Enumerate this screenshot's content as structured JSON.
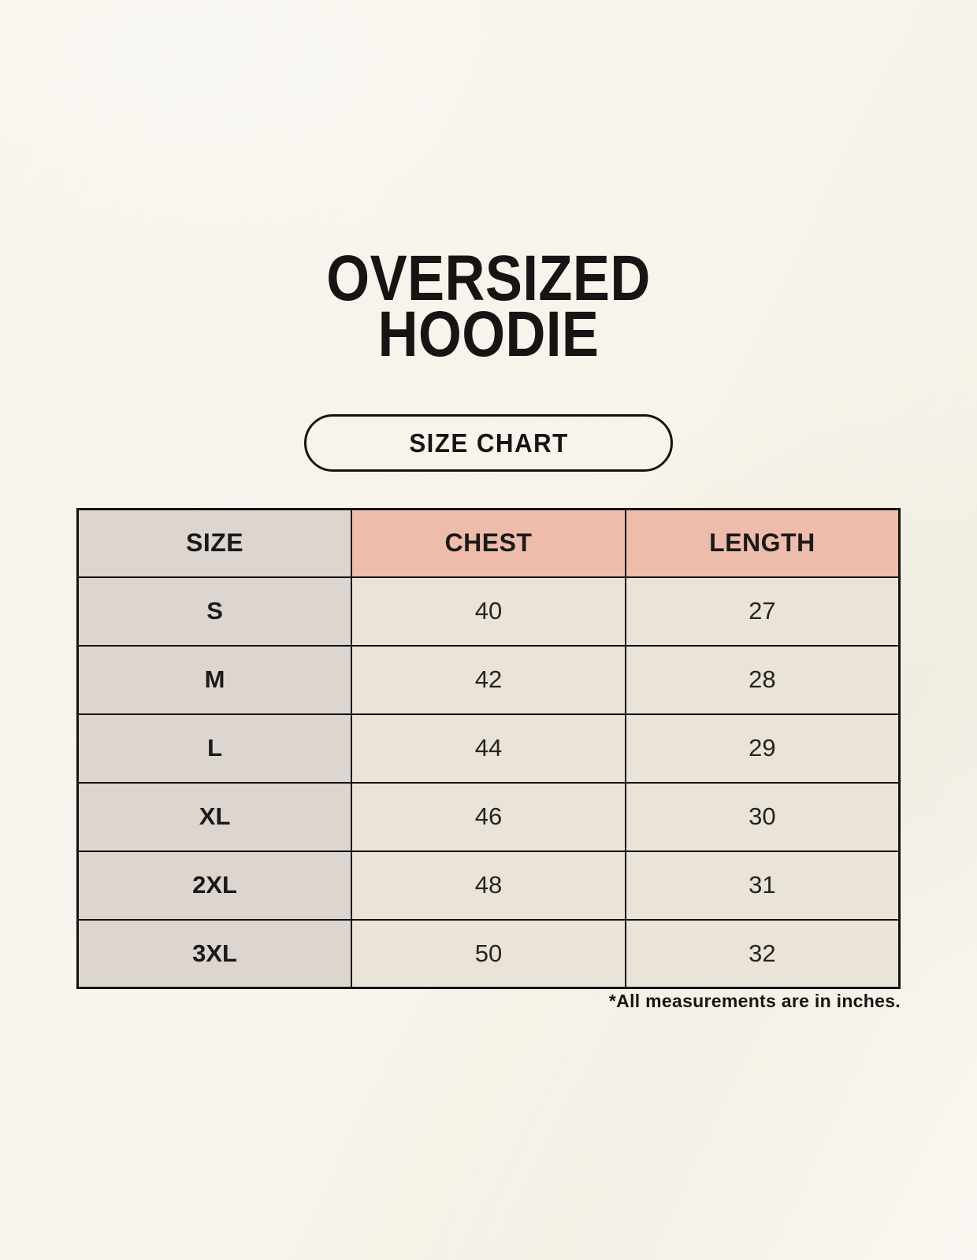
{
  "header": {
    "title_line1": "OVERSIZED",
    "title_line2": "HOODIE",
    "button_label": "SIZE CHART"
  },
  "chart_data": {
    "type": "table",
    "title": "OVERSIZED HOODIE",
    "subtitle": "SIZE CHART",
    "columns": [
      "SIZE",
      "CHEST",
      "LENGTH"
    ],
    "rows": [
      [
        "S",
        40,
        27
      ],
      [
        "M",
        42,
        28
      ],
      [
        "L",
        44,
        29
      ],
      [
        "XL",
        46,
        30
      ],
      [
        "2XL",
        48,
        31
      ],
      [
        "3XL",
        50,
        32
      ]
    ],
    "units": "inches"
  },
  "footnote": "*All measurements are in inches.",
  "colors": {
    "background": "#f8f4ec",
    "header_accent_pink": "#eebcab",
    "size_column_gray": "#dcd5d0",
    "data_cell_cream": "#eae3d8",
    "border": "#141312",
    "text": "#161514"
  }
}
